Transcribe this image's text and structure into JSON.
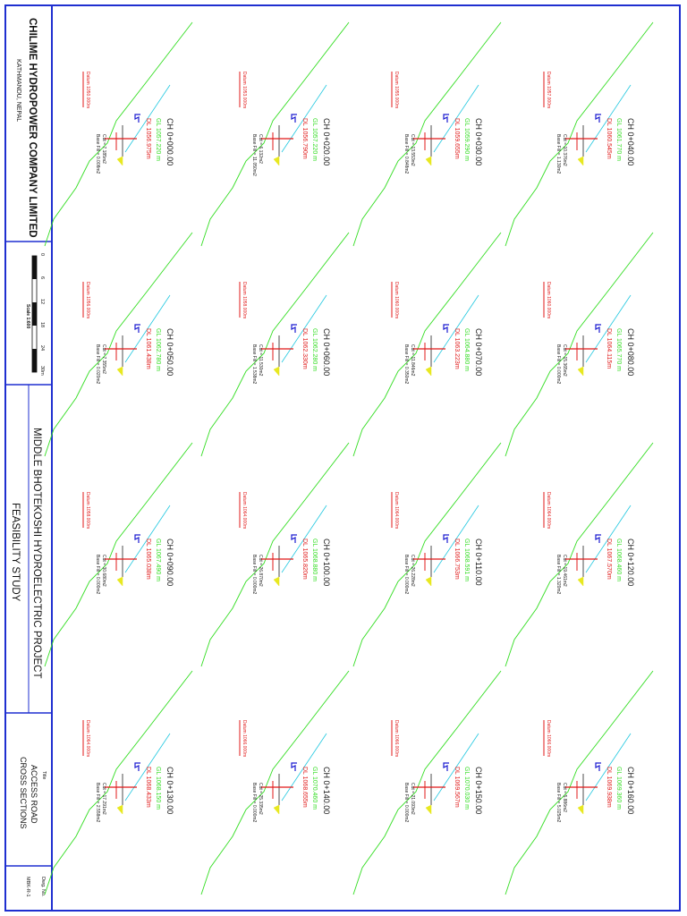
{
  "title_block": {
    "company": "CHILIME HYDROPOWER COMPANY LIMITED",
    "location": "KATHMANDU, NEPAL",
    "scale_ticks": [
      "0",
      "6",
      "12",
      "18",
      "24",
      "30m"
    ],
    "scale_label": "Scale 1:600",
    "project": "MIDDLE BHOTEKOSHI HYDROELECTRIC PROJECT",
    "study": "FEASIBILITY STUDY",
    "title_caption": "Title",
    "drawing_title_1": "ACCESS ROAD",
    "drawing_title_2": "CROSS SECTIONS",
    "dwg_no_label": "Dwg. No.",
    "dwg_no": "MBK-R-1"
  },
  "sections": [
    {
      "ch": "CH 0+000.00",
      "gl": "GL 1057.220 m",
      "dl": "DL 1056.975m",
      "datum": "Datum 1050.000m",
      "cut": "Cut = 7.185m2",
      "fill": "Base Fill = 0.008m2"
    },
    {
      "ch": "CH 0+050.00",
      "gl": "GL 1062.780 m",
      "dl": "DL 1061.438m",
      "datum": "Datum 1056.000m",
      "cut": "Cut = 7.355m2",
      "fill": "Base Fill = 0.020m2"
    },
    {
      "ch": "CH 0+090.00",
      "gl": "GL 1067.490 m",
      "dl": "DL 1065.038m",
      "datum": "Datum 1058.000m",
      "cut": "Cut = 30.680m2",
      "fill": "Base Fill = 0.000m2"
    },
    {
      "ch": "CH 0+130.00",
      "gl": "GL 1068.150 m",
      "dl": "DL 1068.433m",
      "datum": "Datum 1064.000m",
      "cut": "Cut = 17.291m2",
      "fill": "Base Fill = 2.558m2"
    },
    {
      "ch": "CH 0+020.00",
      "gl": "GL 1057.220 m",
      "dl": "DL 1056.790m",
      "datum": "Datum 1053.000m",
      "cut": "Cut = 6.132m2",
      "fill": "Base Fill = 11.050m2"
    },
    {
      "ch": "CH 0+060.00",
      "gl": "GL 1062.280 m",
      "dl": "DL 1062.330m",
      "datum": "Datum 1058.000m",
      "cut": "Cut = 11.530m2",
      "fill": "Base Fill = 1.538m2"
    },
    {
      "ch": "CH 0+100.00",
      "gl": "GL 1068.880 m",
      "dl": "DL 1065.820m",
      "datum": "Datum 1064.000m",
      "cut": "Cut = 26.870m2",
      "fill": "Base Fill = 0.000m2"
    },
    {
      "ch": "CH 0+140.00",
      "gl": "GL 1070.460 m",
      "dl": "DL 1068.655m",
      "datum": "Datum 1066.000m",
      "cut": "Cut = 25.335m2",
      "fill": "Base Fill = 0.000m2"
    },
    {
      "ch": "CH 0+030.00",
      "gl": "GL 1059.290 m",
      "dl": "DL 1059.655m",
      "datum": "Datum 1055.000m",
      "cut": "Cut = 13.553m2",
      "fill": "Base Fill = 0.848m2"
    },
    {
      "ch": "CH 0+070.00",
      "gl": "GL 1064.880 m",
      "dl": "DL 1063.223m",
      "datum": "Datum 1060.000m",
      "cut": "Cut = 11.846m2",
      "fill": "Base Fill = 0.350m2"
    },
    {
      "ch": "CH 0+110.00",
      "gl": "GL 1068.591 m",
      "dl": "DL 1066.753m",
      "datum": "Datum 1064.000m",
      "cut": "Cut = 26.228m2",
      "fill": "Base Fill = 0.000m2"
    },
    {
      "ch": "CH 0+150.00",
      "gl": "GL 1070.030 m",
      "dl": "DL 1069.567m",
      "datum": "Datum 1066.000m",
      "cut": "Cut = 21.093m2",
      "fill": "Base Fill = 0.000m2"
    },
    {
      "ch": "CH 0+040.00",
      "gl": "GL 1061.770 m",
      "dl": "DL 1060.545m",
      "datum": "Datum 1057.000m",
      "cut": "Cut = 10.376m2",
      "fill": "Base Fill = 1.130m2"
    },
    {
      "ch": "CH 0+080.00",
      "gl": "GL 1065.770 m",
      "dl": "DL 1064.115m",
      "datum": "Datum 1060.000m",
      "cut": "Cut = 15.365m2",
      "fill": "Base Fill = 0.000m2"
    },
    {
      "ch": "CH 0+120.00",
      "gl": "GL 1068.460 m",
      "dl": "DL 1067.570m",
      "datum": "Datum 1064.000m",
      "cut": "Cut = 19.461m2",
      "fill": "Base Fill = 1.320m2"
    },
    {
      "ch": "CH 0+160.00",
      "gl": "GL 1069.360 m",
      "dl": "DL 1069.938m",
      "datum": "Datum 1066.000m",
      "cut": "Cut = 5.886m2",
      "fill": "Base Fill = 5.025m2"
    }
  ],
  "colors": {
    "frame": "#1f2fd0",
    "ground": "#33dd22",
    "design": "#22c8e0",
    "red": "#e01818",
    "chainage": "#202020",
    "ditch": "#1a1ad0",
    "fill": "#e8e820"
  }
}
